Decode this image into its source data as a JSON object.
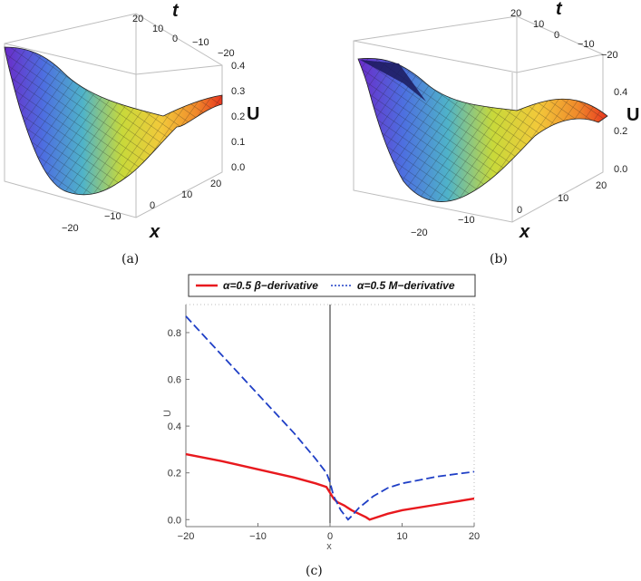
{
  "captions": {
    "a": "(a)",
    "b": "(b)",
    "c": "(c)"
  },
  "surface_a": {
    "t_ticks": [
      "20",
      "10",
      "0",
      "−10",
      "−20"
    ],
    "u_ticks": [
      "0.4",
      "0.3",
      "0.2",
      "0.1",
      "0.0"
    ],
    "x_ticks": [
      "−20",
      "−10",
      "0",
      "10",
      "20"
    ],
    "t_label": "t",
    "u_label": "U",
    "x_label": "x"
  },
  "surface_b": {
    "t_ticks": [
      "20",
      "10",
      "0",
      "−10",
      "−20"
    ],
    "u_ticks": [
      "0.4",
      "0.2",
      "0.0"
    ],
    "x_ticks": [
      "−20",
      "−10",
      "0",
      "10",
      "20"
    ],
    "t_label": "t",
    "u_label": "U",
    "x_label": "x"
  },
  "chart_data": {
    "type": "line",
    "title": "",
    "xlabel": "x",
    "ylabel": "U",
    "xlim": [
      -20,
      20
    ],
    "ylim": [
      -0.03,
      0.92
    ],
    "x_ticks": [
      -20,
      -10,
      0,
      10,
      20
    ],
    "x_tick_labels": [
      "−20",
      "−10",
      "0",
      "10",
      "20"
    ],
    "y_ticks": [
      0.0,
      0.2,
      0.4,
      0.6,
      0.8
    ],
    "y_tick_labels": [
      "0.0",
      "0.2",
      "0.4",
      "0.6",
      "0.8"
    ],
    "legend_position": "top",
    "series": [
      {
        "name_prefix": "α=0.5 ",
        "name_suffix": "β−derivative",
        "color": "#e8191e",
        "style": "solid",
        "x": [
          -20,
          -15,
          -10,
          -5,
          -2,
          -0.5,
          0,
          0.5,
          1,
          2,
          3,
          4,
          5,
          5.5,
          6,
          8,
          10,
          15,
          20
        ],
        "y": [
          0.28,
          0.25,
          0.215,
          0.18,
          0.155,
          0.14,
          0.115,
          0.09,
          0.075,
          0.06,
          0.04,
          0.025,
          0.01,
          0.0,
          0.005,
          0.025,
          0.04,
          0.065,
          0.09
        ]
      },
      {
        "name_prefix": "α=0.5 ",
        "name_suffix": "M−derivative",
        "color": "#1f3fc6",
        "style": "dashed",
        "x": [
          -20,
          -17,
          -14,
          -11,
          -8,
          -5,
          -2,
          -0.5,
          0,
          0.5,
          1,
          1.5,
          2,
          2.5,
          3,
          4,
          6,
          8,
          10,
          15,
          20
        ],
        "y": [
          0.87,
          0.77,
          0.67,
          0.57,
          0.47,
          0.37,
          0.26,
          0.2,
          0.16,
          0.1,
          0.07,
          0.04,
          0.02,
          0.0,
          0.015,
          0.05,
          0.1,
          0.135,
          0.155,
          0.185,
          0.205
        ]
      }
    ]
  }
}
